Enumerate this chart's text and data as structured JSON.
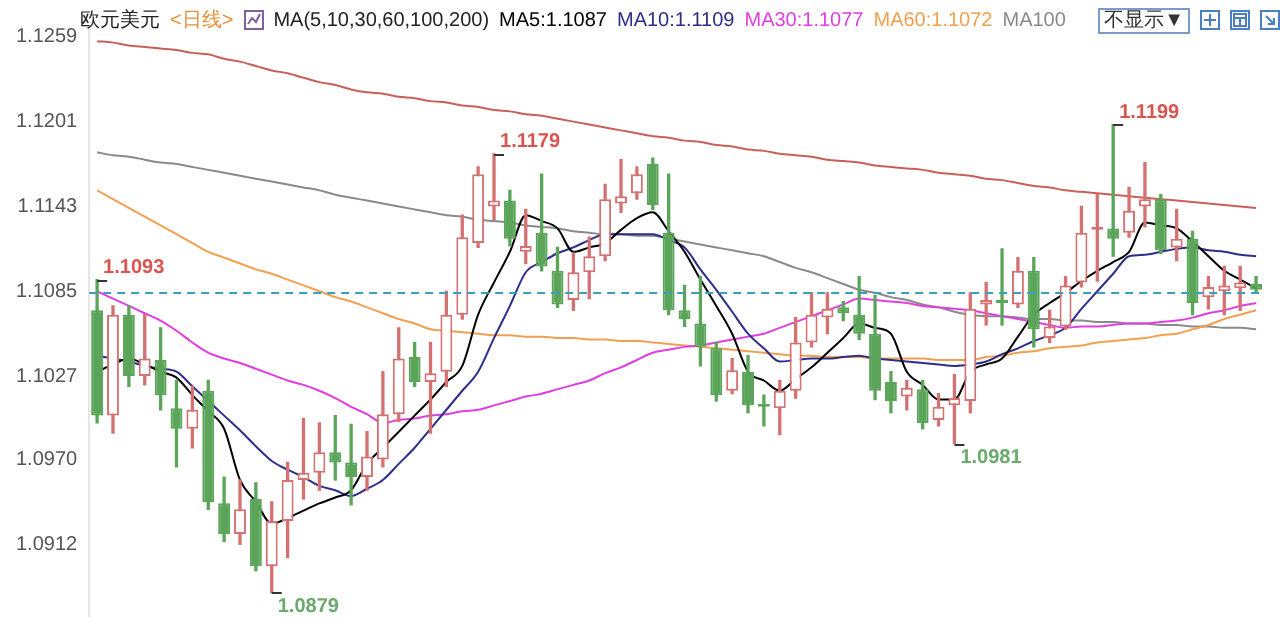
{
  "chart_data": {
    "type": "candlestick",
    "title": "欧元美元",
    "subtitle": "<日线>",
    "categories": [
      null,
      null,
      null,
      null,
      null,
      null,
      null,
      null,
      null,
      null,
      null,
      null,
      null,
      null,
      null,
      null,
      null,
      null,
      null,
      null,
      null,
      null,
      null,
      null,
      null,
      null,
      null,
      null,
      null,
      null,
      null,
      null,
      null,
      null,
      null,
      null,
      null,
      null,
      null,
      null,
      null,
      null,
      null,
      null,
      null,
      null,
      null,
      null,
      null,
      null,
      null,
      null,
      null,
      null,
      null,
      null,
      null,
      null,
      null,
      null,
      null,
      null,
      null,
      null,
      null,
      null,
      null,
      null,
      null,
      null,
      null,
      null,
      null,
      null
    ],
    "ohlc": [
      [
        1.1072,
        1.1093,
        1.0995,
        1.1
      ],
      [
        1.1,
        1.1075,
        1.0988,
        1.1069
      ],
      [
        1.1069,
        1.1075,
        1.102,
        1.1027
      ],
      [
        1.1027,
        1.1069,
        1.1021,
        1.1039
      ],
      [
        1.1038,
        1.106,
        1.1004,
        1.1014
      ],
      [
        1.1005,
        1.1024,
        1.0965,
        1.0991
      ],
      [
        1.0991,
        1.102,
        1.0978,
        1.1004
      ],
      [
        1.1017,
        1.1024,
        1.0936,
        1.0941
      ],
      [
        1.094,
        1.0958,
        1.0914,
        1.0919
      ],
      [
        1.0919,
        1.0956,
        1.0912,
        1.0936
      ],
      [
        1.0943,
        1.0954,
        1.0894,
        1.0897
      ],
      [
        1.0897,
        1.0941,
        1.0879,
        1.0928
      ],
      [
        1.0928,
        1.0968,
        1.0903,
        1.0956
      ],
      [
        1.0956,
        1.0998,
        1.0943,
        1.0961
      ],
      [
        1.0961,
        1.0995,
        1.0949,
        1.0975
      ],
      [
        1.0975,
        1.1,
        1.0956,
        1.0968
      ],
      [
        1.0968,
        1.0994,
        1.0939,
        1.0958
      ],
      [
        1.0958,
        1.0989,
        1.0949,
        1.0972
      ],
      [
        1.097,
        1.103,
        1.0965,
        1.1001
      ],
      [
        1.1001,
        1.106,
        1.0996,
        1.1039
      ],
      [
        1.104,
        1.105,
        1.102,
        1.1023
      ],
      [
        1.1023,
        1.105,
        1.0988,
        1.1029
      ],
      [
        1.103,
        1.1085,
        1.102,
        1.1069
      ],
      [
        1.1069,
        1.1137,
        1.1066,
        1.1122
      ],
      [
        1.1118,
        1.117,
        1.1115,
        1.1165
      ],
      [
        1.1143,
        1.1179,
        1.1134,
        1.1147
      ],
      [
        1.1147,
        1.1154,
        1.1116,
        1.1121
      ],
      [
        1.1112,
        1.1141,
        1.1104,
        1.1116
      ],
      [
        1.1125,
        1.1165,
        1.1099,
        1.1102
      ],
      [
        1.1099,
        1.1115,
        1.1074,
        1.1076
      ],
      [
        1.1079,
        1.1111,
        1.1072,
        1.1098
      ],
      [
        1.1098,
        1.1122,
        1.108,
        1.1109
      ],
      [
        1.1109,
        1.1158,
        1.1106,
        1.1148
      ],
      [
        1.1145,
        1.1175,
        1.1139,
        1.115
      ],
      [
        1.1152,
        1.117,
        1.1148,
        1.1165
      ],
      [
        1.1172,
        1.1176,
        1.1141,
        1.1144
      ],
      [
        1.1125,
        1.1165,
        1.1069,
        1.1072
      ],
      [
        1.1072,
        1.1089,
        1.1061,
        1.1066
      ],
      [
        1.1063,
        1.1095,
        1.1034,
        1.1047
      ],
      [
        1.1046,
        1.105,
        1.101,
        1.1014
      ],
      [
        1.1017,
        1.1039,
        1.1015,
        1.1031
      ],
      [
        1.103,
        1.1041,
        1.1002,
        1.1007
      ],
      [
        1.1008,
        1.1014,
        1.0993,
        1.1006
      ],
      [
        1.1005,
        1.1024,
        1.0987,
        1.1017
      ],
      [
        1.1017,
        1.1067,
        1.1012,
        1.105
      ],
      [
        1.105,
        1.1084,
        1.1047,
        1.1069
      ],
      [
        1.1067,
        1.1084,
        1.1056,
        1.1073
      ],
      [
        1.1074,
        1.1078,
        1.1065,
        1.107
      ],
      [
        1.1069,
        1.1095,
        1.1052,
        1.1056
      ],
      [
        1.1056,
        1.1082,
        1.1011,
        1.1017
      ],
      [
        1.1023,
        1.103,
        1.1002,
        1.101
      ],
      [
        1.1013,
        1.1024,
        1.1004,
        1.1019
      ],
      [
        1.1018,
        1.1024,
        1.0991,
        1.0995
      ],
      [
        1.0997,
        1.1015,
        1.0993,
        1.1006
      ],
      [
        1.1007,
        1.1028,
        1.0981,
        1.1012
      ],
      [
        1.101,
        1.1084,
        1.1002,
        1.1073
      ],
      [
        1.1076,
        1.1091,
        1.1062,
        1.1079
      ],
      [
        1.1079,
        1.1114,
        1.1062,
        1.1077
      ],
      [
        1.1076,
        1.1108,
        1.1074,
        1.1099
      ],
      [
        1.1099,
        1.1108,
        1.1047,
        1.1059
      ],
      [
        1.1053,
        1.1072,
        1.105,
        1.1061
      ],
      [
        1.1061,
        1.1095,
        1.1059,
        1.1089
      ],
      [
        1.1091,
        1.1143,
        1.1088,
        1.1125
      ],
      [
        1.1127,
        1.1151,
        1.1092,
        1.1129
      ],
      [
        1.1128,
        1.1199,
        1.1109,
        1.1121
      ],
      [
        1.1125,
        1.1156,
        1.1122,
        1.114
      ],
      [
        1.1143,
        1.1173,
        1.1129,
        1.1148
      ],
      [
        1.1148,
        1.1151,
        1.1111,
        1.1113
      ],
      [
        1.1115,
        1.1141,
        1.1106,
        1.1121
      ],
      [
        1.1121,
        1.1126,
        1.1069,
        1.1077
      ],
      [
        1.1081,
        1.1095,
        1.1073,
        1.1088
      ],
      [
        1.1085,
        1.1102,
        1.1069,
        1.1089
      ],
      [
        1.1087,
        1.1102,
        1.1072,
        1.1091
      ],
      [
        1.109,
        1.1095,
        1.1084,
        1.1086
      ]
    ],
    "series": [
      {
        "type": "line",
        "name": "MA5:1.1087",
        "color": "#000000",
        "values": [
          1.103,
          1.1035,
          1.1039,
          1.1035,
          1.103,
          1.1026,
          1.1014,
          1.1003,
          1.0991,
          1.0956,
          1.0941,
          1.0926,
          1.093,
          1.0935,
          1.094,
          1.0944,
          1.0949,
          1.0967,
          1.0978,
          1.0989,
          1.1,
          1.1011,
          1.1023,
          1.1034,
          1.1069,
          1.1091,
          1.1112,
          1.1137,
          1.1133,
          1.1128,
          1.1112,
          1.1115,
          1.1118,
          1.1127,
          1.1135,
          1.1139,
          1.1126,
          1.1112,
          1.1093,
          1.1075,
          1.1056,
          1.103,
          1.1024,
          1.1017,
          1.1025,
          1.1033,
          1.1043,
          1.1053,
          1.1063,
          1.106,
          1.1056,
          1.103,
          1.1021,
          1.1011,
          1.1011,
          1.103,
          1.1035,
          1.1039,
          1.1054,
          1.1069,
          1.1077,
          1.1084,
          1.1092,
          1.1099,
          1.1105,
          1.1112,
          1.1132,
          1.113,
          1.1128,
          1.1119,
          1.1109,
          1.1099,
          1.1093,
          1.1087
        ]
      },
      {
        "type": "line",
        "name": "MA10:1.1109",
        "color": "#2e2e8a",
        "values": [
          1.1041,
          1.1039,
          1.1037,
          1.1034,
          1.1032,
          1.103,
          1.102,
          1.101,
          1.1,
          1.099,
          1.0979,
          1.0969,
          1.0963,
          1.0958,
          1.0952,
          1.0949,
          1.0945,
          1.095,
          1.0956,
          1.0967,
          1.0978,
          1.0991,
          1.1004,
          1.1017,
          1.103,
          1.1053,
          1.1075,
          1.1098,
          1.1105,
          1.1111,
          1.1115,
          1.112,
          1.1124,
          1.1124,
          1.1124,
          1.1124,
          1.112,
          1.1115,
          1.11,
          1.1086,
          1.1071,
          1.1056,
          1.1046,
          1.1037,
          1.1038,
          1.1039,
          1.1039,
          1.104,
          1.1041,
          1.1039,
          1.1038,
          1.1037,
          1.1036,
          1.1035,
          1.1034,
          1.1035,
          1.1037,
          1.1042,
          1.1046,
          1.1051,
          1.1055,
          1.106,
          1.1073,
          1.1085,
          1.1097,
          1.1109,
          1.111,
          1.1112,
          1.1114,
          1.1115,
          1.1113,
          1.1112,
          1.111,
          1.1109
        ]
      },
      {
        "type": "line",
        "name": "MA30:1.1077",
        "color": "#e03fe0",
        "values": [
          1.1085,
          1.108,
          1.1075,
          1.107,
          1.1065,
          1.1058,
          1.105,
          1.1043,
          1.1039,
          1.1036,
          1.1032,
          1.1028,
          1.1024,
          1.1021,
          1.1017,
          1.1012,
          1.1006,
          1.1001,
          1.0995,
          1.0997,
          1.0998,
          1.1,
          1.1001,
          1.1003,
          1.1004,
          1.1007,
          1.101,
          1.1013,
          1.1015,
          1.1018,
          1.1021,
          1.1024,
          1.1029,
          1.1033,
          1.1038,
          1.1043,
          1.1045,
          1.1047,
          1.1048,
          1.105,
          1.1052,
          1.1054,
          1.1056,
          1.106,
          1.1064,
          1.1068,
          1.1072,
          1.1076,
          1.108,
          1.1079,
          1.1078,
          1.1077,
          1.1075,
          1.1074,
          1.1073,
          1.1072,
          1.107,
          1.1068,
          1.1066,
          1.1064,
          1.1062,
          1.106,
          1.1061,
          1.1061,
          1.1062,
          1.1063,
          1.1063,
          1.1064,
          1.1065,
          1.1067,
          1.107,
          1.1072,
          1.1075,
          1.1077
        ]
      },
      {
        "type": "line",
        "name": "MA60:1.1072",
        "color": "#f0a050",
        "values": [
          1.1154,
          1.1148,
          1.1142,
          1.1136,
          1.113,
          1.1124,
          1.1118,
          1.1112,
          1.1108,
          1.1104,
          1.11,
          1.1097,
          1.1093,
          1.1089,
          1.1085,
          1.1081,
          1.1078,
          1.1074,
          1.107,
          1.1066,
          1.1063,
          1.1059,
          1.1058,
          1.1057,
          1.1056,
          1.1055,
          1.1055,
          1.1054,
          1.1054,
          1.1053,
          1.1053,
          1.1052,
          1.1052,
          1.1051,
          1.1051,
          1.105,
          1.1049,
          1.1048,
          1.1047,
          1.1046,
          1.1045,
          1.1044,
          1.1043,
          1.1042,
          1.1041,
          1.1041,
          1.104,
          1.104,
          1.104,
          1.1039,
          1.1039,
          1.1039,
          1.1039,
          1.1038,
          1.1038,
          1.1038,
          1.104,
          1.1041,
          1.1043,
          1.1044,
          1.1046,
          1.1047,
          1.1048,
          1.105,
          1.1051,
          1.1052,
          1.1053,
          1.1055,
          1.1056,
          1.1059,
          1.1062,
          1.1066,
          1.1069,
          1.1072
        ]
      },
      {
        "type": "line",
        "name": "MA100",
        "color": "#8a8a8a",
        "values": [
          1.118,
          1.1178,
          1.1177,
          1.1175,
          1.1173,
          1.1172,
          1.117,
          1.1168,
          1.1166,
          1.1164,
          1.1162,
          1.116,
          1.1158,
          1.1156,
          1.1154,
          1.1151,
          1.1149,
          1.1147,
          1.1145,
          1.1143,
          1.1141,
          1.1139,
          1.1137,
          1.1136,
          1.1134,
          1.1133,
          1.1132,
          1.113,
          1.1129,
          1.1128,
          1.1126,
          1.1125,
          1.1124,
          1.1124,
          1.1123,
          1.1123,
          1.1121,
          1.1119,
          1.1117,
          1.1115,
          1.1113,
          1.1111,
          1.1109,
          1.1105,
          1.1101,
          1.1098,
          1.1094,
          1.109,
          1.1086,
          1.1084,
          1.1081,
          1.1079,
          1.1076,
          1.1074,
          1.1071,
          1.1069,
          1.1068,
          1.1068,
          1.1067,
          1.1066,
          1.1066,
          1.1065,
          1.1065,
          1.1064,
          1.1064,
          1.1063,
          1.1063,
          1.1062,
          1.1062,
          1.1061,
          1.1061,
          1.106,
          1.106,
          1.1059
        ]
      },
      {
        "type": "line",
        "color": "#c8605a",
        "values": [
          1.1256,
          1.1255,
          1.1253,
          1.1252,
          1.1251,
          1.125,
          1.1248,
          1.1247,
          1.1244,
          1.1242,
          1.1239,
          1.1236,
          1.1234,
          1.1231,
          1.1228,
          1.1226,
          1.1223,
          1.1221,
          1.122,
          1.1218,
          1.1217,
          1.1215,
          1.1214,
          1.1212,
          1.1211,
          1.1209,
          1.1208,
          1.1206,
          1.1205,
          1.1203,
          1.1201,
          1.1199,
          1.1197,
          1.1195,
          1.1193,
          1.1191,
          1.119,
          1.1188,
          1.1187,
          1.1185,
          1.1184,
          1.1182,
          1.1181,
          1.1179,
          1.1178,
          1.1177,
          1.1175,
          1.1174,
          1.1173,
          1.1171,
          1.117,
          1.1169,
          1.1168,
          1.1166,
          1.1165,
          1.1164,
          1.1162,
          1.1161,
          1.1159,
          1.1157,
          1.1156,
          1.1154,
          1.1153,
          1.1152,
          1.1151,
          1.115,
          1.1149,
          1.1148,
          1.1147,
          1.1146,
          1.1145,
          1.1144,
          1.1143,
          1.1142
        ]
      }
    ],
    "ylim": [
      1.0863,
      1.1265
    ],
    "yticks": [
      1.0912,
      {
        "value": 1.097,
        "label": "1.0970"
      },
      1.1027,
      1.1085,
      1.1143,
      1.1201,
      1.1259
    ],
    "tick_labels": "y",
    "legend": "top",
    "ref_lines": [
      {
        "axis": "y",
        "value": 1.1085,
        "color": "#3a9fbf",
        "line_style": "dashed"
      }
    ],
    "annotations": [
      "MA(5,10,30,60,100,200)",
      "不显示▼",
      "1.1093",
      "1.1179",
      "1.0879",
      "1.0981",
      "1.1199"
    ]
  }
}
